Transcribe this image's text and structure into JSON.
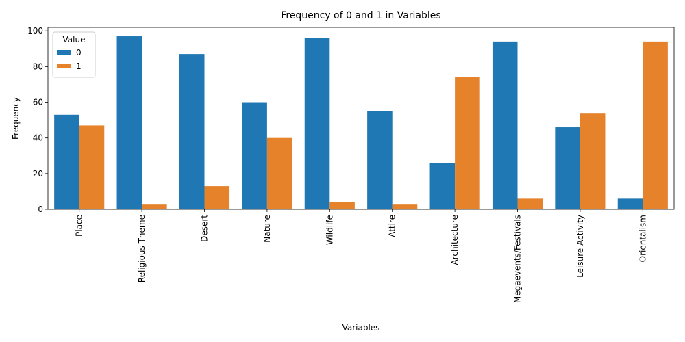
{
  "chart_data": {
    "type": "bar",
    "title": "Frequency of 0 and 1 in Variables",
    "xlabel": "Variables",
    "ylabel": "Frequency",
    "ylim": [
      0,
      102
    ],
    "yticks": [
      0,
      20,
      40,
      60,
      80,
      100
    ],
    "categories": [
      "Place",
      "Religious Theme",
      "Desert",
      "Nature",
      "Wildlife",
      "Attire",
      "Architecture",
      "Megaevents/Festivals",
      "Leisure Activity",
      "Orientalism"
    ],
    "series": [
      {
        "name": "0",
        "color": "#1f77b4",
        "values": [
          53,
          97,
          87,
          60,
          96,
          55,
          26,
          94,
          46,
          6
        ]
      },
      {
        "name": "1",
        "color": "#e6822a",
        "values": [
          47,
          3,
          13,
          40,
          4,
          3,
          74,
          6,
          54,
          94
        ]
      }
    ],
    "legend": {
      "title": "Value",
      "position": "top-left"
    },
    "grid": false
  }
}
